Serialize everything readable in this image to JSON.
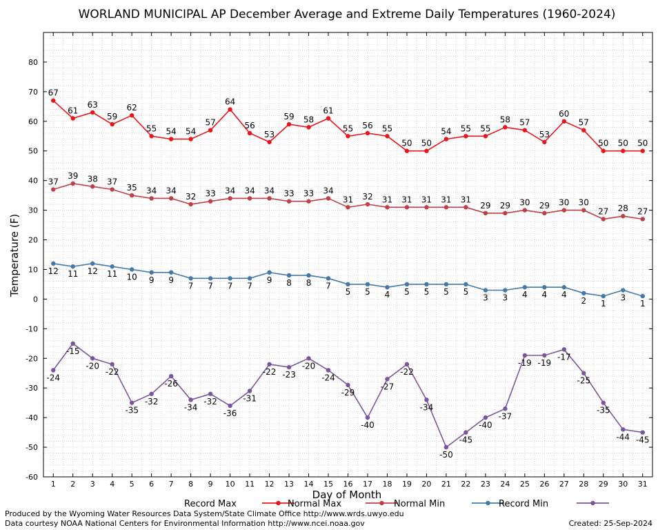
{
  "chart_data": {
    "type": "line",
    "title": "WORLAND MUNICIPAL AP December Average and Extreme Daily Temperatures (1960-2024)",
    "xlabel": "Day of Month",
    "ylabel": "Temperature (F)",
    "ylim": [
      -60,
      90
    ],
    "yticks": [
      -60,
      -50,
      -40,
      -30,
      -20,
      -10,
      0,
      10,
      20,
      30,
      40,
      50,
      60,
      70,
      80
    ],
    "xlim": [
      0.5,
      31.5
    ],
    "x": [
      1,
      2,
      3,
      4,
      5,
      6,
      7,
      8,
      9,
      10,
      11,
      12,
      13,
      14,
      15,
      16,
      17,
      18,
      19,
      20,
      21,
      22,
      23,
      24,
      25,
      26,
      27,
      28,
      29,
      30,
      31
    ],
    "grid": true,
    "legend_placement": "bottom",
    "series": [
      {
        "name": "Record Max",
        "color": "#e8161b",
        "label_pos": "above",
        "values": [
          67,
          61,
          63,
          59,
          62,
          55,
          54,
          54,
          57,
          64,
          56,
          53,
          59,
          58,
          61,
          55,
          56,
          55,
          50,
          50,
          54,
          55,
          55,
          58,
          57,
          53,
          60,
          57,
          50,
          50,
          50
        ]
      },
      {
        "name": "Normal Max",
        "color": "#bf3f46",
        "label_pos": "above",
        "values": [
          37,
          39,
          38,
          37,
          35,
          34,
          34,
          32,
          33,
          34,
          34,
          34,
          33,
          33,
          34,
          31,
          32,
          31,
          31,
          31,
          31,
          31,
          29,
          29,
          30,
          29,
          30,
          30,
          27,
          28,
          27
        ]
      },
      {
        "name": "Normal Min",
        "color": "#4477aa",
        "label_pos": "below",
        "values": [
          12,
          11,
          12,
          11,
          10,
          9,
          9,
          7,
          7,
          7,
          7,
          9,
          8,
          8,
          7,
          5,
          5,
          4,
          5,
          5,
          5,
          5,
          3,
          3,
          4,
          4,
          4,
          2,
          1,
          3,
          1
        ]
      },
      {
        "name": "Record Min",
        "color": "#7b559b",
        "label_pos": "below",
        "values": [
          -24,
          -15,
          -20,
          -22,
          -35,
          -32,
          -26,
          -34,
          -32,
          -36,
          -31,
          -22,
          -23,
          -20,
          -24,
          -29,
          -40,
          -27,
          -22,
          -34,
          -50,
          -45,
          -40,
          -37,
          -19,
          -19,
          -17,
          -25,
          -35,
          -44,
          -45
        ]
      }
    ]
  },
  "footer": {
    "produced_by": "Produced by the Wyoming Water Resources Data System/State Climate Office http://www.wrds.uwyo.edu",
    "courtesy": "Data courtesy NOAA National Centers for Environmental Information http://www.ncei.noaa.gov",
    "created": "Created:  25-Sep-2024"
  }
}
